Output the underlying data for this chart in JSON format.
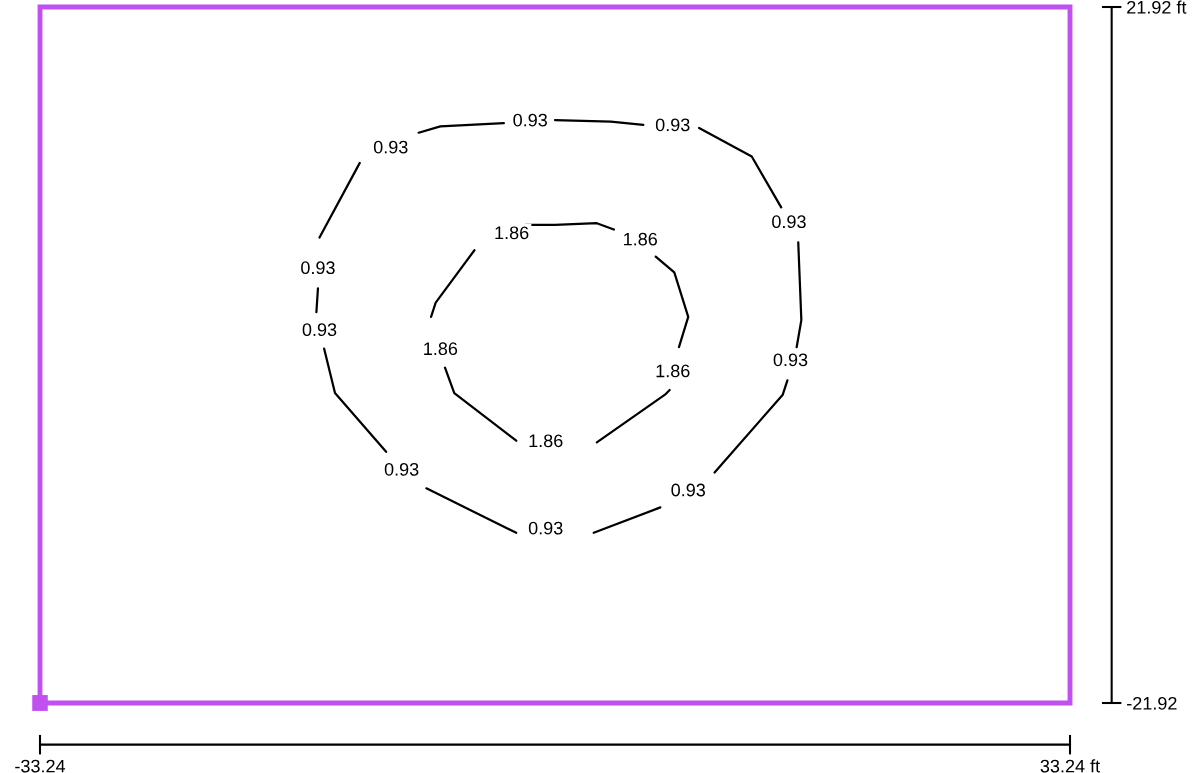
{
  "chart_data": {
    "type": "line",
    "xlim": [
      -33.24,
      33.24
    ],
    "ylim": [
      -21.92,
      21.92
    ],
    "xticks": [
      {
        "value": -33.24,
        "label": "-33.24"
      },
      {
        "value": 33.24,
        "label": "33.24 ft"
      }
    ],
    "yticks": [
      {
        "value": -21.92,
        "label": "-21.92"
      },
      {
        "value": 21.92,
        "label": "21.92 ft"
      }
    ],
    "series": [
      {
        "color": "#000000",
        "x": [
          -15.2,
          -12.6,
          -10.6,
          -8.8,
          -7.4,
          -3.3,
          -1.6,
          0.0,
          3.6,
          5.7,
          7.6,
          9.3,
          12.7,
          14.6,
          15.1,
          15.7,
          15.9,
          15.6,
          15.2,
          15.0,
          14.7,
          10.3,
          8.6,
          6.8,
          2.5,
          -0.6,
          -2.5,
          -8.3,
          -9.9,
          -10.9,
          -14.2,
          -14.9,
          -15.2,
          -15.4,
          -15.3
        ],
        "values": [
          7.4,
          12.1,
          null,
          14.0,
          14.4,
          14.6,
          null,
          14.8,
          14.7,
          14.5,
          null,
          14.3,
          12.5,
          9.3,
          null,
          7.1,
          2.2,
          0.5,
          null,
          -1.6,
          -2.5,
          -7.4,
          null,
          -9.6,
          -11.2,
          null,
          -11.2,
          -8.4,
          null,
          -6.1,
          -2.4,
          0.4,
          null,
          2.7,
          4.2
        ]
      },
      {
        "color": "#000000",
        "x": [
          -1.9,
          0.0,
          2.7,
          3.8,
          5.5,
          6.5,
          7.7,
          8.6,
          8.0,
          7.6,
          7.4,
          7.1,
          2.7,
          -0.6,
          -2.5,
          -6.5,
          -7.1,
          -7.4,
          -8.0,
          -7.7,
          -5.2
        ],
        "values": [
          8.2,
          8.2,
          8.3,
          7.9,
          null,
          6.2,
          5.2,
          2.4,
          0.5,
          null,
          -2.2,
          -2.5,
          -5.5,
          null,
          -5.4,
          -2.4,
          -0.8,
          null,
          2.4,
          3.3,
          6.6
        ]
      }
    ],
    "annotations": [
      {
        "text": "0.93",
        "x": -10.6,
        "y": 13.0
      },
      {
        "text": "0.93",
        "x": -1.6,
        "y": 14.7
      },
      {
        "text": "0.93",
        "x": 7.6,
        "y": 14.4
      },
      {
        "text": "0.93",
        "x": 15.1,
        "y": 8.3
      },
      {
        "text": "0.93",
        "x": 15.2,
        "y": -0.4
      },
      {
        "text": "0.93",
        "x": 8.6,
        "y": -8.6
      },
      {
        "text": "0.93",
        "x": -0.6,
        "y": -11.0
      },
      {
        "text": "0.93",
        "x": -9.9,
        "y": -7.3
      },
      {
        "text": "0.93",
        "x": -15.2,
        "y": 1.5
      },
      {
        "text": "0.93",
        "x": -15.3,
        "y": 5.4
      },
      {
        "text": "1.86",
        "x": -2.8,
        "y": 7.6
      },
      {
        "text": "1.86",
        "x": 5.5,
        "y": 7.2
      },
      {
        "text": "1.86",
        "x": 7.6,
        "y": -1.1
      },
      {
        "text": "1.86",
        "x": -0.6,
        "y": -5.5
      },
      {
        "text": "1.86",
        "x": -7.4,
        "y": 0.3
      }
    ]
  }
}
